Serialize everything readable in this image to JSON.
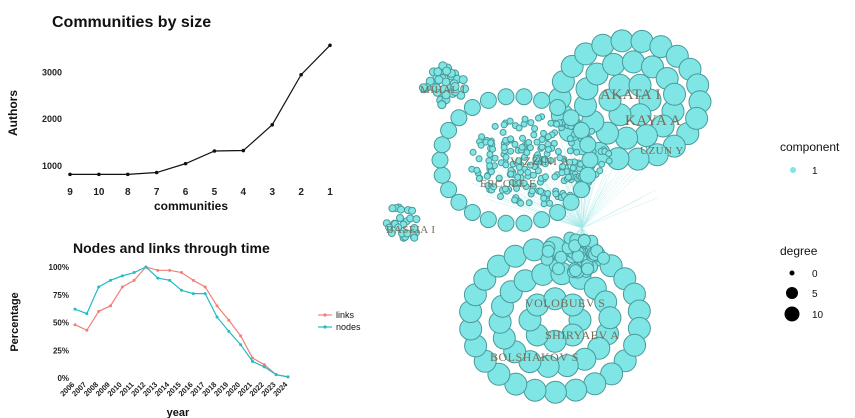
{
  "chart_data": [
    {
      "type": "line",
      "title": "Communities by size",
      "xlabel": "communities",
      "ylabel": "Authors",
      "categories": [
        "9",
        "10",
        "8",
        "7",
        "6",
        "5",
        "4",
        "3",
        "2",
        "1"
      ],
      "values": [
        820,
        820,
        820,
        860,
        1050,
        1320,
        1330,
        1880,
        2950,
        3580
      ],
      "ylim": [
        700,
        3800
      ],
      "yticks": [
        1000,
        2000,
        3000
      ],
      "color": "#111111"
    },
    {
      "type": "line",
      "title": "Nodes and links through time",
      "xlabel": "year",
      "ylabel": "Percentage",
      "categories": [
        "2006",
        "2007",
        "2008",
        "2009",
        "2010",
        "2011",
        "2012",
        "2013",
        "2014",
        "2015",
        "2016",
        "2017",
        "2018",
        "2019",
        "2020",
        "2021",
        "2022",
        "2023",
        "2024"
      ],
      "yticks": [
        "0%",
        "25%",
        "50%",
        "75%",
        "100%"
      ],
      "ylim": [
        0,
        100
      ],
      "series": [
        {
          "name": "links",
          "color": "#f0807a",
          "values": [
            48,
            43,
            60,
            65,
            82,
            88,
            100,
            97,
            97,
            95,
            88,
            82,
            65,
            52,
            38,
            18,
            12,
            3,
            1
          ]
        },
        {
          "name": "nodes",
          "color": "#21bcc5",
          "values": [
            62,
            58,
            82,
            88,
            92,
            95,
            100,
            90,
            88,
            79,
            76,
            76,
            55,
            42,
            30,
            15,
            10,
            3,
            1
          ]
        }
      ]
    },
    {
      "type": "network",
      "node_color": "#7fe5e5",
      "node_stroke": "#4a9a9a",
      "labels": [
        "MIHAL I",
        "AKATA I",
        "KAYA A",
        "UZUN Y",
        "VIZZINI A",
        "ERCOLE E",
        "BASEIA I",
        "VOLOBUEV S",
        "SHIRYAEV A",
        "BOLSHAKOV S"
      ],
      "legend": {
        "component_title": "component",
        "component_values": [
          "1"
        ],
        "degree_title": "degree",
        "degree_values": [
          "0",
          "5",
          "10"
        ]
      }
    }
  ]
}
